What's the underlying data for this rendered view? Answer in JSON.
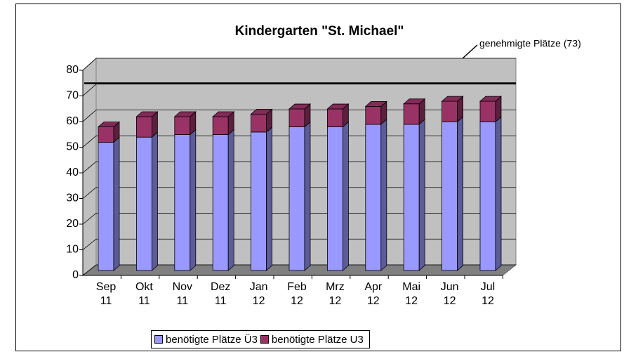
{
  "chart_data": {
    "type": "bar",
    "stacked": true,
    "three_d": true,
    "title": "Kindergarten \"St. Michael\"",
    "annotation": "genehmigte Plätze (73)",
    "reference_value": 73,
    "categories": [
      "Sep 11",
      "Okt 11",
      "Nov 11",
      "Dez 11",
      "Jan 12",
      "Feb 12",
      "Mrz 12",
      "Apr 12",
      "Mai 12",
      "Jun 12",
      "Jul 12"
    ],
    "series": [
      {
        "name": "benötigte Plätze Ü3",
        "color": "#9999ff",
        "values": [
          50,
          52,
          53,
          53,
          54,
          56,
          56,
          57,
          57,
          58,
          58
        ]
      },
      {
        "name": "benötigte Plätze U3",
        "color": "#993366",
        "values": [
          6,
          8,
          7,
          7,
          7,
          7,
          7,
          7,
          8,
          8,
          8
        ]
      }
    ],
    "ylim": [
      0,
      80
    ],
    "yticks": [
      0,
      10,
      20,
      30,
      40,
      50,
      60,
      70,
      80
    ],
    "grid": true,
    "legend": "bottom"
  }
}
